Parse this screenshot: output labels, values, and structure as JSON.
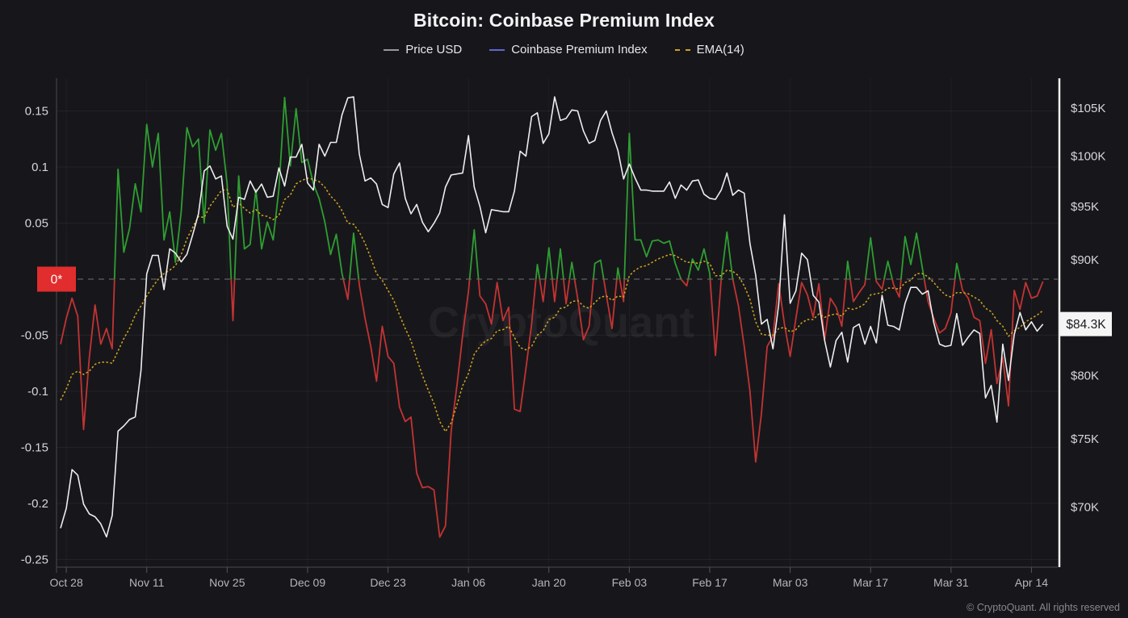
{
  "header": {
    "legend_items": [
      {
        "label": "Price USD",
        "marker_color": "#97979e",
        "marker_style": "solid"
      },
      {
        "label": "Coinbase Premium Index",
        "marker_color": "#6365d2",
        "marker_style": "solid"
      },
      {
        "label": "EMA(14)",
        "marker_color": "#cfa11f",
        "marker_style": "dotted"
      }
    ]
  },
  "watermark": "CryptoQuant",
  "footer": {
    "copyright": "© CryptoQuant. All rights reserved"
  },
  "chart_data": {
    "type": "line",
    "title": "Bitcoin: Coinbase Premium Index",
    "start_date": "2024-10-27",
    "frequency": "daily",
    "background": "#17171b",
    "grid": true,
    "x_ticks": [
      {
        "label": "Oct 28",
        "day": 1
      },
      {
        "label": "Nov 11",
        "day": 15
      },
      {
        "label": "Nov 25",
        "day": 29
      },
      {
        "label": "Dec 09",
        "day": 43
      },
      {
        "label": "Dec 23",
        "day": 57
      },
      {
        "label": "Jan 06",
        "day": 71
      },
      {
        "label": "Jan 20",
        "day": 85
      },
      {
        "label": "Feb 03",
        "day": 99
      },
      {
        "label": "Feb 17",
        "day": 113
      },
      {
        "label": "Mar 03",
        "day": 127
      },
      {
        "label": "Mar 17",
        "day": 141
      },
      {
        "label": "Mar 31",
        "day": 155
      },
      {
        "label": "Apr 14",
        "day": 169
      }
    ],
    "left_axis": {
      "label": "Coinbase Premium Index",
      "range": [
        -0.257,
        0.179
      ],
      "ticks": [
        {
          "label": "0.15",
          "value": 0.15
        },
        {
          "label": "0.1",
          "value": 0.1
        },
        {
          "label": "0.05",
          "value": 0.05
        },
        {
          "label": "-0.05",
          "value": -0.05
        },
        {
          "label": "-0.1",
          "value": -0.1
        },
        {
          "label": "-0.15",
          "value": -0.15
        },
        {
          "label": "-0.2",
          "value": -0.2
        },
        {
          "label": "-0.25",
          "value": -0.25
        }
      ],
      "zero_marker": {
        "label": "0*",
        "color": "#e12d2d",
        "text_color": "#ffffff"
      },
      "zero_line_style": "dashed"
    },
    "right_axis": {
      "label": "Price USD",
      "scale": "log",
      "range": [
        66000,
        108400
      ],
      "ticks": [
        {
          "label": "$105K",
          "value": 105000
        },
        {
          "label": "$100K",
          "value": 100000
        },
        {
          "label": "$95K",
          "value": 95000
        },
        {
          "label": "$90K",
          "value": 90000
        },
        {
          "label": "$80K",
          "value": 80000
        },
        {
          "label": "$75K",
          "value": 75000
        },
        {
          "label": "$70K",
          "value": 70000
        }
      ],
      "current_value_badge": {
        "label": "$84.3K",
        "value": 84300,
        "bg": "#f5f5f5",
        "text_color": "#1b1b1f"
      }
    },
    "series": [
      {
        "name": "Price USD",
        "axis": "right",
        "unit": "thousand USD",
        "color": "#ededef",
        "width": 1.6,
        "values": [
          68.5,
          69.9,
          72.7,
          72.3,
          70.2,
          69.5,
          69.3,
          68.8,
          67.9,
          69.4,
          75.6,
          76.0,
          76.5,
          76.7,
          80.4,
          88.7,
          90.4,
          90.4,
          87.3,
          91.0,
          90.6,
          89.8,
          90.5,
          92.3,
          94.3,
          98.5,
          99.0,
          97.7,
          98.0,
          93.1,
          91.9,
          95.9,
          95.7,
          97.5,
          96.4,
          97.2,
          95.9,
          96.0,
          98.8,
          97.0,
          99.9,
          99.9,
          101.2,
          97.3,
          96.6,
          101.2,
          100.0,
          101.4,
          101.4,
          104.3,
          106.1,
          106.2,
          100.2,
          97.5,
          97.8,
          97.2,
          95.2,
          94.9,
          98.2,
          99.3,
          95.8,
          94.3,
          95.2,
          93.5,
          92.6,
          93.4,
          94.4,
          96.9,
          98.1,
          98.2,
          98.3,
          102.1,
          96.9,
          95.0,
          92.5,
          94.7,
          94.6,
          94.5,
          94.5,
          96.5,
          100.5,
          100.0,
          104.1,
          104.5,
          101.3,
          102.3,
          106.2,
          103.7,
          103.9,
          104.8,
          104.7,
          102.6,
          101.3,
          101.6,
          103.7,
          104.7,
          102.4,
          100.6,
          97.7,
          99.2,
          97.8,
          96.6,
          96.6,
          96.5,
          96.5,
          96.5,
          97.4,
          95.8,
          97.1,
          96.6,
          97.5,
          97.6,
          96.2,
          95.8,
          95.7,
          96.6,
          98.3,
          96.1,
          96.6,
          96.3,
          91.5,
          88.6,
          84.3,
          84.7,
          82.2,
          86.0,
          94.2,
          86.1,
          87.2,
          90.6,
          90.0,
          86.8,
          86.2,
          82.9,
          80.7,
          82.9,
          83.6,
          81.1,
          84.0,
          84.3,
          82.6,
          84.1,
          82.7,
          86.8,
          84.2,
          84.1,
          83.8,
          86.1,
          87.5,
          87.5,
          86.9,
          87.2,
          84.4,
          82.6,
          82.4,
          82.5,
          85.2,
          82.5,
          83.2,
          83.8,
          83.5,
          78.2,
          79.2,
          76.3,
          82.6,
          79.6,
          83.4,
          85.3,
          83.8,
          84.5,
          83.7,
          84.3
        ]
      },
      {
        "name": "Coinbase Premium Index",
        "axis": "left",
        "legend_color": "#6365d2",
        "color_positive": "#2f9e32",
        "color_negative": "#c43333",
        "width": 1.8,
        "values": [
          -0.058,
          -0.035,
          -0.017,
          -0.033,
          -0.134,
          -0.07,
          -0.023,
          -0.058,
          -0.044,
          -0.062,
          0.098,
          0.024,
          0.045,
          0.085,
          0.06,
          0.138,
          0.1,
          0.13,
          0.035,
          0.06,
          0.015,
          0.06,
          0.135,
          0.118,
          0.125,
          0.05,
          0.133,
          0.115,
          0.13,
          0.085,
          -0.037,
          0.092,
          0.027,
          0.031,
          0.08,
          0.027,
          0.051,
          0.035,
          0.08,
          0.162,
          0.101,
          0.152,
          0.104,
          0.107,
          0.085,
          0.072,
          0.051,
          0.022,
          0.04,
          0.005,
          -0.018,
          0.041,
          -0.005,
          -0.035,
          -0.06,
          -0.091,
          -0.042,
          -0.069,
          -0.075,
          -0.114,
          -0.127,
          -0.123,
          -0.173,
          -0.186,
          -0.185,
          -0.188,
          -0.23,
          -0.22,
          -0.135,
          -0.095,
          -0.05,
          -0.011,
          0.044,
          -0.015,
          -0.022,
          -0.04,
          -0.003,
          -0.037,
          -0.025,
          -0.116,
          -0.118,
          -0.08,
          -0.04,
          0.013,
          -0.02,
          0.028,
          -0.02,
          0.027,
          -0.022,
          0.015,
          -0.017,
          -0.054,
          -0.042,
          0.014,
          0.017,
          -0.014,
          -0.044,
          0.01,
          -0.02,
          0.13,
          0.035,
          0.035,
          0.02,
          0.034,
          0.035,
          0.032,
          0.034,
          0.014,
          0.0,
          -0.006,
          0.018,
          0.008,
          0.027,
          0.005,
          -0.068,
          0.0,
          0.042,
          0.0,
          -0.024,
          -0.06,
          -0.1,
          -0.163,
          -0.12,
          -0.06,
          -0.051,
          -0.004,
          -0.04,
          -0.069,
          -0.035,
          -0.003,
          -0.014,
          -0.034,
          -0.004,
          -0.054,
          -0.017,
          -0.025,
          -0.042,
          0.016,
          -0.02,
          -0.012,
          -0.005,
          0.037,
          -0.002,
          -0.009,
          0.016,
          -0.005,
          -0.016,
          0.038,
          0.013,
          0.041,
          0.01,
          -0.02,
          -0.035,
          -0.048,
          -0.044,
          -0.03,
          0.014,
          -0.01,
          -0.017,
          -0.034,
          -0.037,
          -0.075,
          -0.045,
          -0.093,
          -0.07,
          -0.113,
          -0.01,
          -0.027,
          -0.003,
          -0.017,
          -0.015,
          -0.002
        ]
      },
      {
        "name": "EMA(14)",
        "axis": "left",
        "color": "#d3a61e",
        "style": "dotted",
        "width": 1.5,
        "values": [
          -0.108,
          -0.098,
          -0.085,
          -0.082,
          -0.085,
          -0.082,
          -0.076,
          -0.074,
          -0.074,
          -0.075,
          -0.064,
          -0.053,
          -0.044,
          -0.032,
          -0.024,
          -0.015,
          -0.007,
          0.0,
          0.005,
          0.008,
          0.012,
          0.022,
          0.036,
          0.046,
          0.056,
          0.055,
          0.065,
          0.072,
          0.079,
          0.08,
          0.064,
          0.068,
          0.063,
          0.059,
          0.062,
          0.057,
          0.056,
          0.053,
          0.057,
          0.071,
          0.075,
          0.085,
          0.088,
          0.09,
          0.089,
          0.087,
          0.082,
          0.074,
          0.069,
          0.061,
          0.05,
          0.049,
          0.042,
          0.032,
          0.019,
          0.005,
          -0.001,
          -0.01,
          -0.019,
          -0.032,
          -0.044,
          -0.055,
          -0.071,
          -0.086,
          -0.099,
          -0.111,
          -0.127,
          -0.136,
          -0.128,
          -0.112,
          -0.095,
          -0.084,
          -0.067,
          -0.06,
          -0.055,
          -0.053,
          -0.046,
          -0.045,
          -0.042,
          -0.052,
          -0.061,
          -0.063,
          -0.06,
          -0.05,
          -0.046,
          -0.036,
          -0.034,
          -0.026,
          -0.025,
          -0.02,
          -0.019,
          -0.024,
          -0.026,
          -0.021,
          -0.016,
          -0.015,
          -0.019,
          -0.015,
          -0.016,
          0.003,
          0.008,
          0.011,
          0.012,
          0.015,
          0.018,
          0.02,
          0.022,
          0.021,
          0.018,
          0.015,
          0.015,
          0.014,
          0.016,
          0.014,
          0.003,
          0.003,
          0.008,
          0.007,
          0.003,
          -0.006,
          -0.018,
          -0.038,
          -0.049,
          -0.05,
          -0.05,
          -0.044,
          -0.043,
          -0.047,
          -0.045,
          -0.039,
          -0.036,
          -0.036,
          -0.031,
          -0.034,
          -0.032,
          -0.031,
          -0.033,
          -0.026,
          -0.027,
          -0.025,
          -0.022,
          -0.014,
          -0.013,
          -0.012,
          -0.008,
          -0.008,
          -0.009,
          -0.003,
          -0.001,
          0.005,
          0.005,
          0.002,
          -0.003,
          -0.009,
          -0.014,
          -0.016,
          -0.012,
          -0.012,
          -0.013,
          -0.016,
          -0.019,
          -0.026,
          -0.029,
          -0.037,
          -0.042,
          -0.051,
          -0.046,
          -0.043,
          -0.038,
          -0.035,
          -0.032,
          -0.028
        ]
      }
    ]
  }
}
